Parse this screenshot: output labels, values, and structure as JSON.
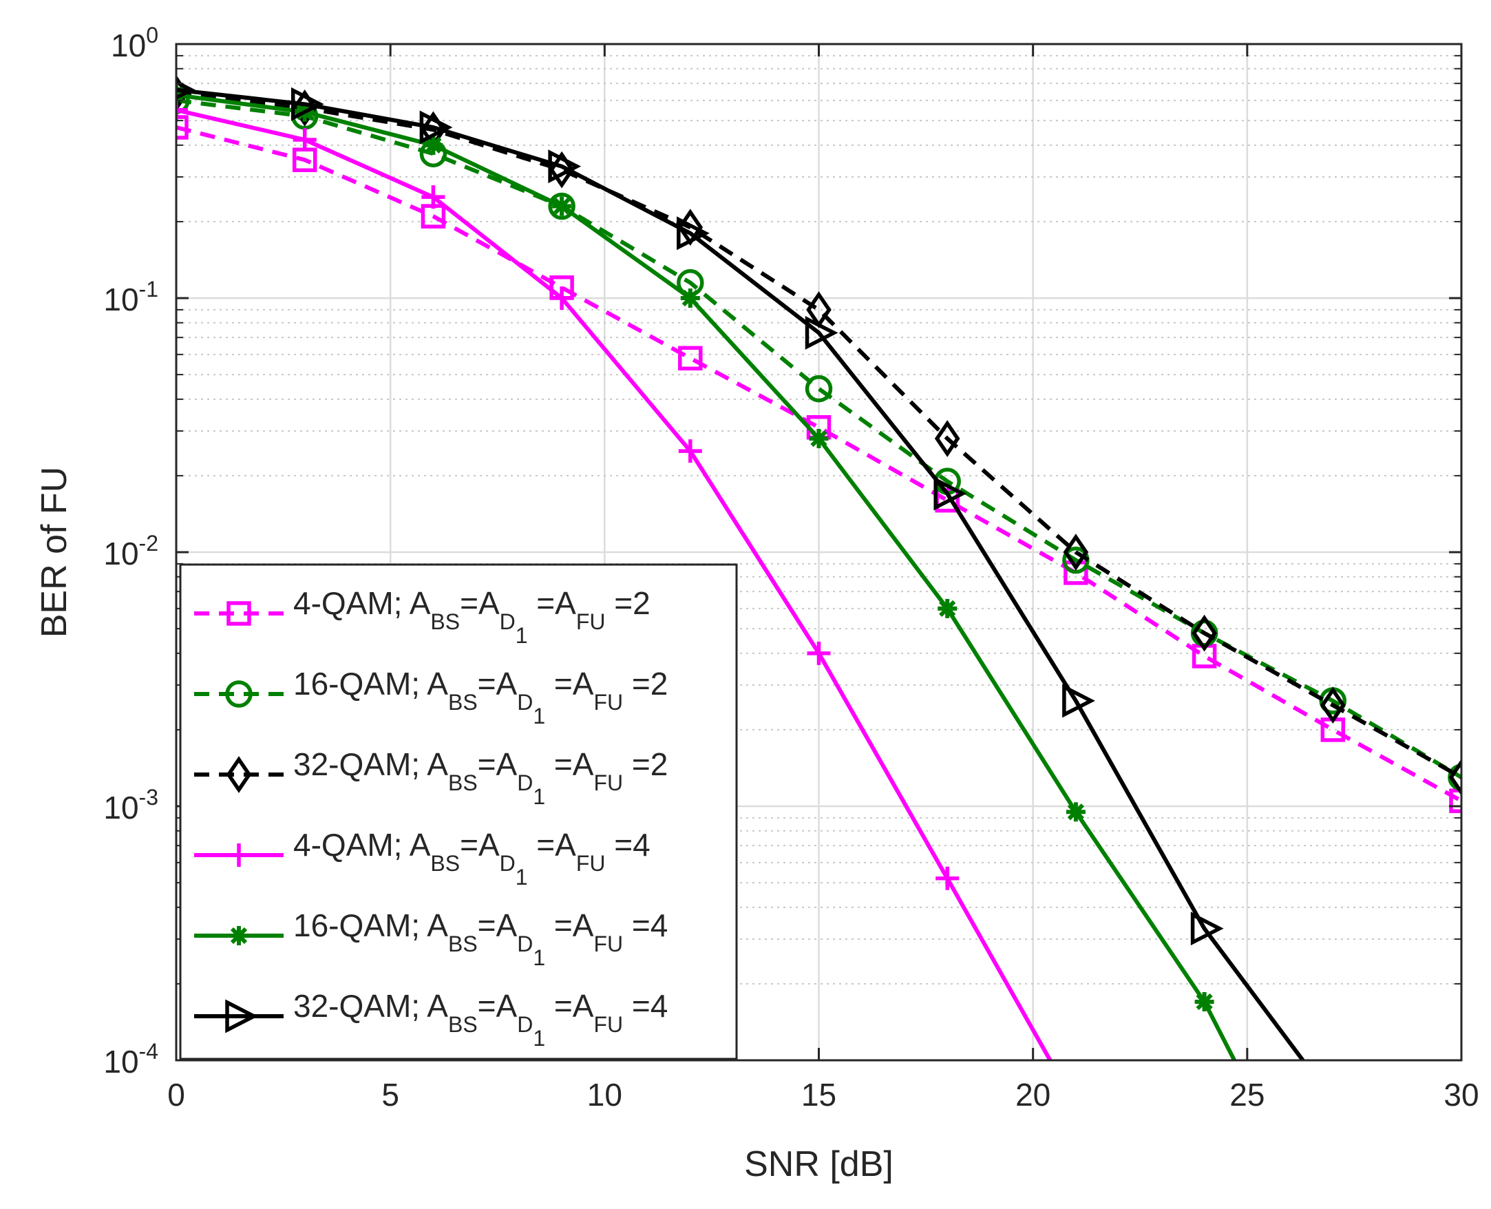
{
  "chart_data": {
    "type": "line",
    "title": "",
    "xlabel": "SNR [dB]",
    "ylabel": "BER of FU",
    "yscale": "log",
    "xlim": [
      0,
      30
    ],
    "ylim": [
      0.0001,
      1
    ],
    "grid": true,
    "legend_location": "bottom-left",
    "x_ticks": [
      {
        "value": 0,
        "label": "0"
      },
      {
        "value": 5,
        "label": "5"
      },
      {
        "value": 10,
        "label": "10"
      },
      {
        "value": 15,
        "label": "15"
      },
      {
        "value": 20,
        "label": "20"
      },
      {
        "value": 25,
        "label": "25"
      },
      {
        "value": 30,
        "label": "30"
      }
    ],
    "y_ticks": [
      {
        "value": 1,
        "base": "10",
        "exp": "0"
      },
      {
        "value": 0.1,
        "base": "10",
        "exp": "-1"
      },
      {
        "value": 0.01,
        "base": "10",
        "exp": "-2"
      },
      {
        "value": 0.001,
        "base": "10",
        "exp": "-3"
      },
      {
        "value": 0.0001,
        "base": "10",
        "exp": "-4"
      }
    ],
    "series": [
      {
        "name": "4-QAM; A_BS=A_D1=A_FU=2",
        "label_parts": {
          "prefix": "4-QAM; A",
          "s1": "BS",
          "mid1": "=A",
          "s2": "D",
          "s3": "1",
          "mid2": " =A",
          "s4": "FU",
          "suffix": " =2"
        },
        "color": "#FF00FF",
        "dash": "dashed",
        "marker": "square",
        "x": [
          0,
          3,
          6,
          9,
          12,
          15,
          18,
          21,
          24,
          27,
          30
        ],
        "y": [
          0.47,
          0.35,
          0.21,
          0.11,
          0.058,
          0.031,
          0.016,
          0.0083,
          0.0039,
          0.002,
          0.00105
        ]
      },
      {
        "name": "16-QAM; A_BS=A_D1=A_FU=2",
        "label_parts": {
          "prefix": "16-QAM; A",
          "s1": "BS",
          "mid1": "=A",
          "s2": "D",
          "s3": "1",
          "mid2": " =A",
          "s4": "FU",
          "suffix": " =2"
        },
        "color": "#008000",
        "dash": "dashed",
        "marker": "circle",
        "x": [
          0,
          3,
          6,
          9,
          12,
          15,
          18,
          21,
          24,
          27,
          30
        ],
        "y": [
          0.6,
          0.52,
          0.37,
          0.23,
          0.115,
          0.044,
          0.019,
          0.0093,
          0.0048,
          0.0026,
          0.0013
        ]
      },
      {
        "name": "32-QAM; A_BS=A_D1=A_FU=2",
        "label_parts": {
          "prefix": "32-QAM; A",
          "s1": "BS",
          "mid1": "=A",
          "s2": "D",
          "s3": "1",
          "mid2": " =A",
          "s4": "FU",
          "suffix": " =2"
        },
        "color": "#000000",
        "dash": "dashed",
        "marker": "diamond",
        "x": [
          0,
          3,
          6,
          9,
          12,
          15,
          18,
          21,
          24,
          27,
          30
        ],
        "y": [
          0.64,
          0.56,
          0.46,
          0.32,
          0.19,
          0.09,
          0.028,
          0.01,
          0.0048,
          0.0025,
          0.0013
        ]
      },
      {
        "name": "4-QAM; A_BS=A_D1=A_FU=4",
        "label_parts": {
          "prefix": "4-QAM; A",
          "s1": "BS",
          "mid1": "=A",
          "s2": "D",
          "s3": "1",
          "mid2": " =A",
          "s4": "FU",
          "suffix": " =4"
        },
        "color": "#FF00FF",
        "dash": "solid",
        "marker": "plus",
        "x": [
          0,
          3,
          6,
          9,
          12,
          15,
          18,
          20.4
        ],
        "y": [
          0.55,
          0.42,
          0.25,
          0.1,
          0.025,
          0.004,
          0.00052,
          0.0001
        ]
      },
      {
        "name": "16-QAM; A_BS=A_D1=A_FU=4",
        "label_parts": {
          "prefix": "16-QAM; A",
          "s1": "BS",
          "mid1": "=A",
          "s2": "D",
          "s3": "1",
          "mid2": " =A",
          "s4": "FU",
          "suffix": " =4"
        },
        "color": "#008000",
        "dash": "solid",
        "marker": "asterisk",
        "x": [
          0,
          3,
          6,
          9,
          12,
          15,
          18,
          21,
          24,
          24.7
        ],
        "y": [
          0.63,
          0.54,
          0.4,
          0.23,
          0.1,
          0.028,
          0.006,
          0.00095,
          0.00017,
          0.0001
        ]
      },
      {
        "name": "32-QAM; A_BS=A_D1=A_FU=4",
        "label_parts": {
          "prefix": "32-QAM; A",
          "s1": "BS",
          "mid1": "=A",
          "s2": "D",
          "s3": "1",
          "mid2": " =A",
          "s4": "FU",
          "suffix": " =4"
        },
        "color": "#000000",
        "dash": "solid",
        "marker": "triangle-right",
        "x": [
          0,
          3,
          6,
          9,
          12,
          15,
          18,
          21,
          24,
          26.3
        ],
        "y": [
          0.66,
          0.58,
          0.47,
          0.33,
          0.18,
          0.073,
          0.017,
          0.0026,
          0.00033,
          0.0001
        ]
      }
    ]
  }
}
